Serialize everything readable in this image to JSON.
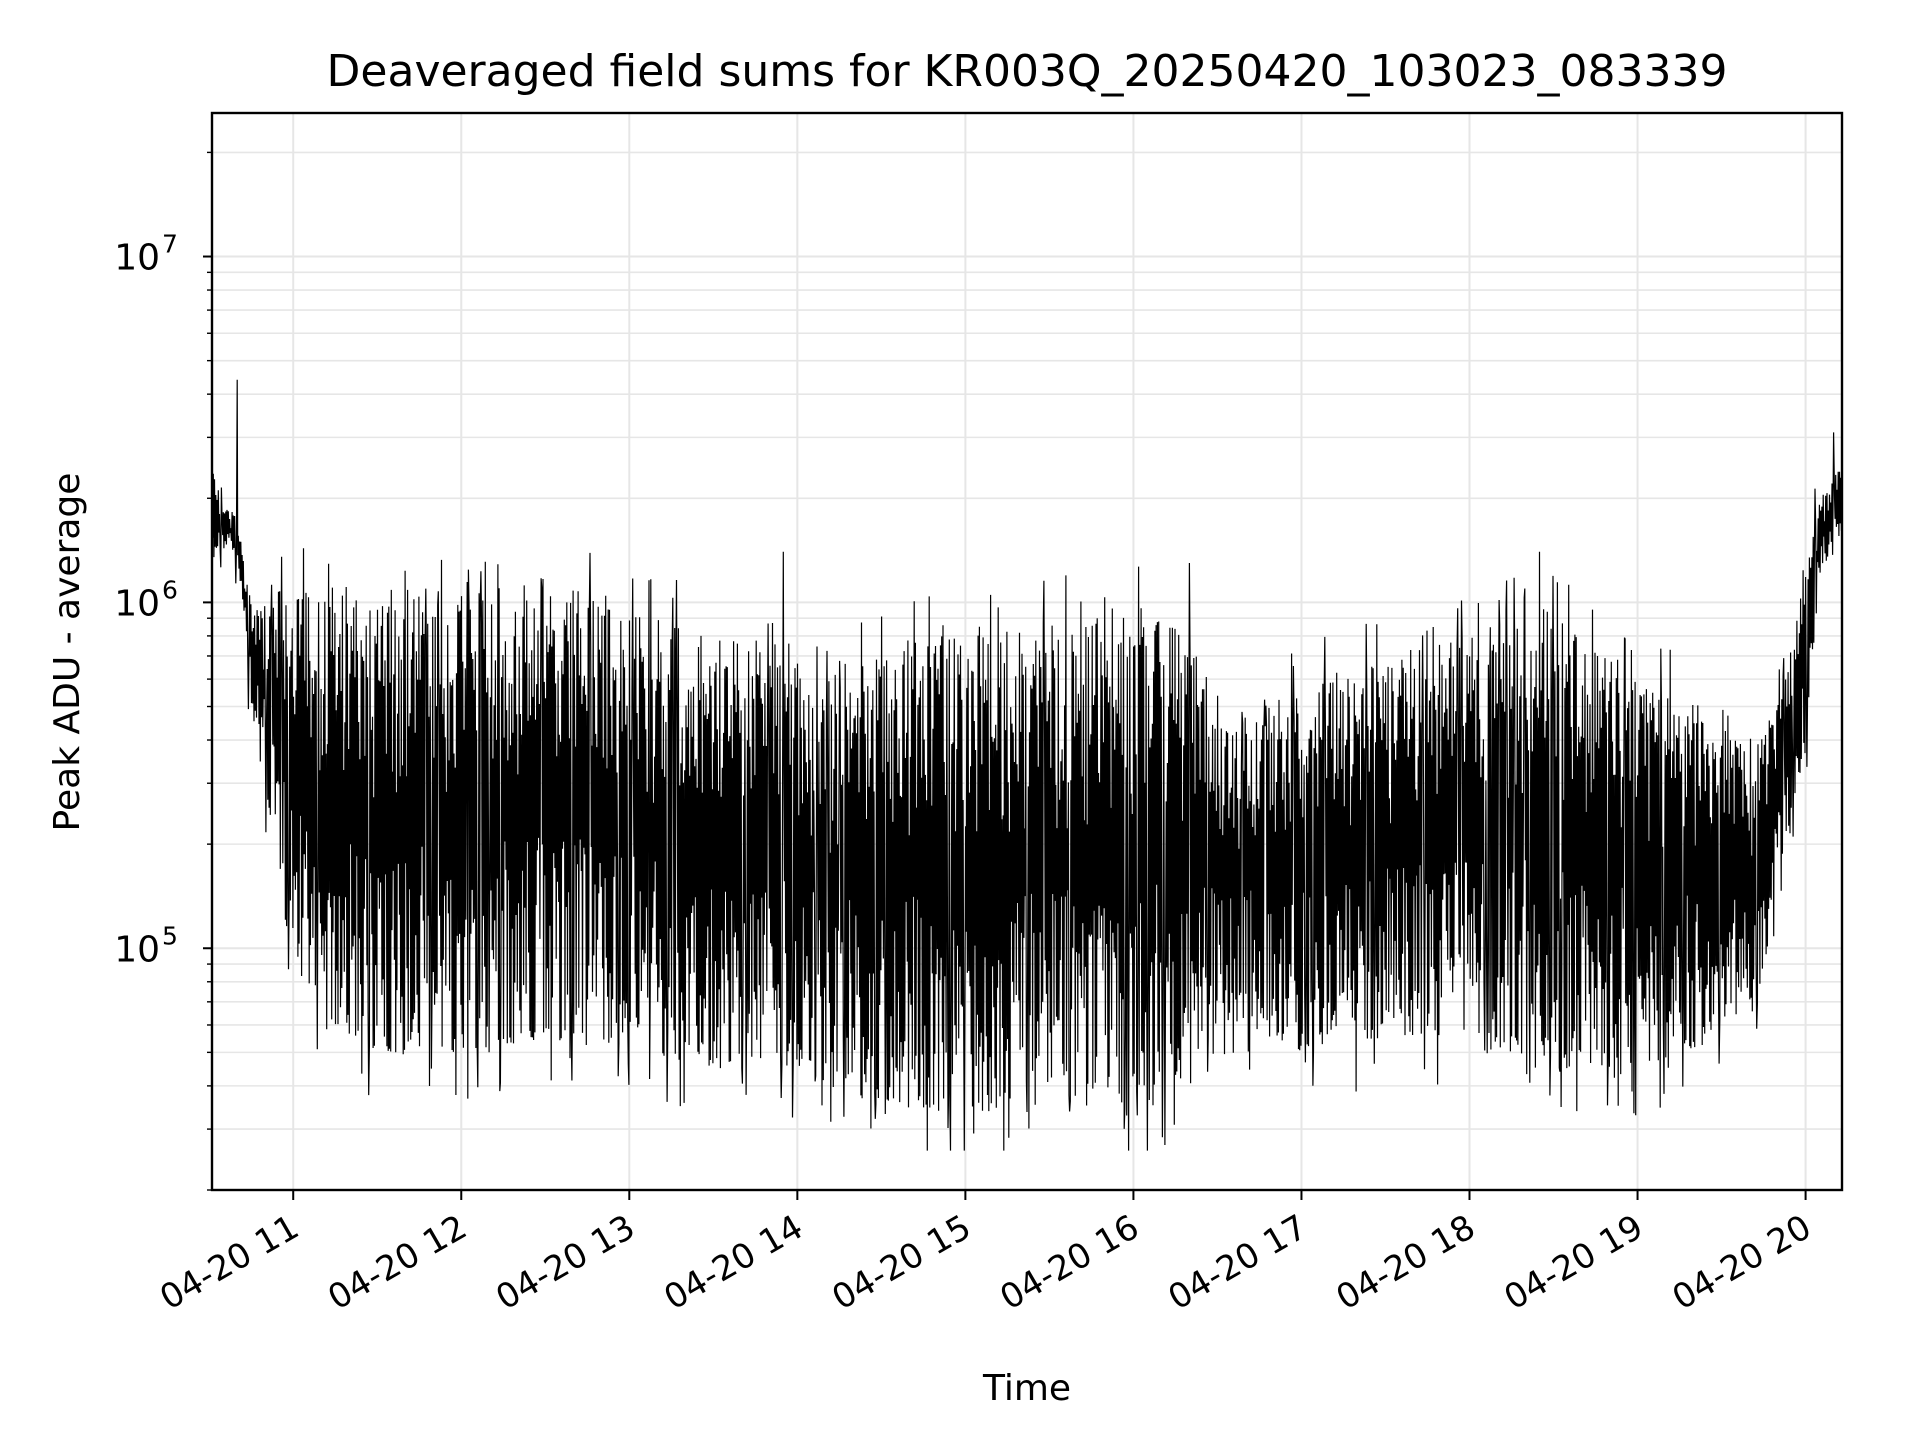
{
  "chart_data": {
    "type": "line",
    "title": "Deaveraged field sums for KR003Q_20250420_103023_083339",
    "xlabel": "Time",
    "ylabel": "Peak ADU - average",
    "yscale": "log",
    "ylim": [
      20000,
      26000000
    ],
    "xlim": [
      "2025-04-20 10:31",
      "2025-04-20 20:13"
    ],
    "grid": true,
    "line_color": "#000000",
    "grid_color": "#e6e6e6",
    "x_ticks": [
      "04-20 11",
      "04-20 12",
      "04-20 13",
      "04-20 14",
      "04-20 15",
      "04-20 16",
      "04-20 17",
      "04-20 18",
      "04-20 19",
      "04-20 20"
    ],
    "x_tick_times": [
      "2025-04-20 11:00",
      "2025-04-20 12:00",
      "2025-04-20 13:00",
      "2025-04-20 14:00",
      "2025-04-20 15:00",
      "2025-04-20 16:00",
      "2025-04-20 17:00",
      "2025-04-20 18:00",
      "2025-04-20 19:00",
      "2025-04-20 20:00"
    ],
    "y_ticks": [
      {
        "base": "10",
        "exp": "5",
        "value": 100000
      },
      {
        "base": "10",
        "exp": "6",
        "value": 1000000
      },
      {
        "base": "10",
        "exp": "7",
        "value": 10000000
      }
    ],
    "series": [
      {
        "x": [
          "2025-04-20 10:31",
          "2025-04-20 10:35",
          "2025-04-20 10:40",
          "2025-04-20 10:45",
          "2025-04-20 10:50",
          "2025-04-20 10:55",
          "2025-04-20 11:00",
          "2025-04-20 11:15",
          "2025-04-20 11:30",
          "2025-04-20 12:00",
          "2025-04-20 12:30",
          "2025-04-20 13:00",
          "2025-04-20 13:30",
          "2025-04-20 14:00",
          "2025-04-20 14:10",
          "2025-04-20 14:30",
          "2025-04-20 15:00",
          "2025-04-20 15:30",
          "2025-04-20 16:00",
          "2025-04-20 16:20",
          "2025-04-20 16:40",
          "2025-04-20 17:00",
          "2025-04-20 17:30",
          "2025-04-20 18:00",
          "2025-04-20 18:30",
          "2025-04-20 19:00",
          "2025-04-20 19:30",
          "2025-04-20 19:45",
          "2025-04-20 20:00",
          "2025-04-20 20:05",
          "2025-04-20 20:13"
        ],
        "upper": [
          2500000,
          1900000,
          1800000,
          1000000,
          1000000,
          1100000,
          1100000,
          1100000,
          1000000,
          1100000,
          1150000,
          1050000,
          800000,
          800000,
          600000,
          800000,
          800000,
          900000,
          1000000,
          800000,
          450000,
          600000,
          700000,
          800000,
          1000000,
          600000,
          500000,
          400000,
          1200000,
          2000000,
          2500000
        ],
        "lower": [
          1300000,
          1400000,
          1400000,
          500000,
          300000,
          150000,
          90000,
          60000,
          50000,
          50000,
          55000,
          50000,
          45000,
          45000,
          40000,
          35000,
          33000,
          35000,
          35000,
          40000,
          60000,
          50000,
          55000,
          55000,
          45000,
          45000,
          55000,
          70000,
          400000,
          1200000,
          1500000
        ],
        "lows_min": 26000,
        "spikes": [
          {
            "x": "2025-04-20 10:40",
            "y": 4400000
          },
          {
            "x": "2025-04-20 13:55",
            "y": 1400000
          },
          {
            "x": "2025-04-20 15:05",
            "y": 850000
          },
          {
            "x": "2025-04-20 16:05",
            "y": 26000
          },
          {
            "x": "2025-04-20 16:20",
            "y": 1300000
          },
          {
            "x": "2025-04-20 18:25",
            "y": 1400000
          },
          {
            "x": "2025-04-20 20:10",
            "y": 3100000
          }
        ]
      }
    ]
  }
}
